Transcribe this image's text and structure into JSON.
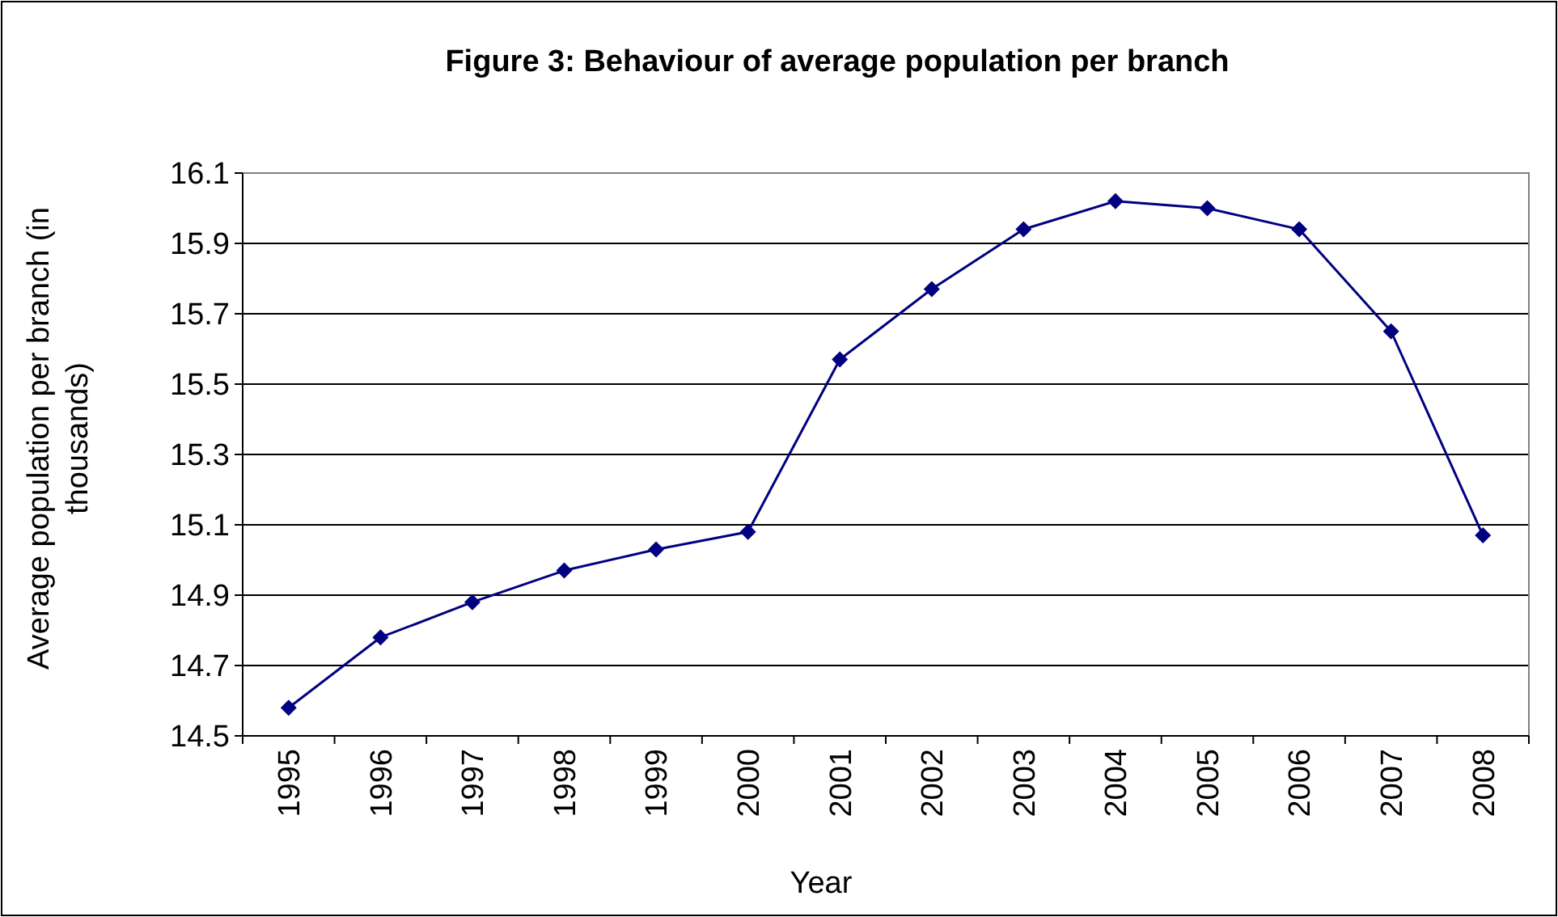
{
  "chart_data": {
    "type": "line",
    "title": "Figure 3: Behaviour of average population per branch",
    "xlabel": "Year",
    "ylabel": "Average population per branch (in thousands)",
    "categories": [
      "1995",
      "1996",
      "1997",
      "1998",
      "1999",
      "2000",
      "2001",
      "2002",
      "2003",
      "2004",
      "2005",
      "2006",
      "2007",
      "2008"
    ],
    "series": [
      {
        "color": "#000080",
        "values": [
          14.58,
          14.78,
          14.88,
          14.97,
          15.03,
          15.08,
          15.57,
          15.77,
          15.94,
          16.02,
          16.0,
          15.94,
          15.65,
          15.07
        ]
      }
    ],
    "ylim": [
      14.5,
      16.1
    ],
    "yticks": [
      14.5,
      14.7,
      14.9,
      15.1,
      15.3,
      15.5,
      15.7,
      15.9,
      16.1
    ],
    "grid": "y",
    "marker": "diamond",
    "line_style": "solid"
  }
}
